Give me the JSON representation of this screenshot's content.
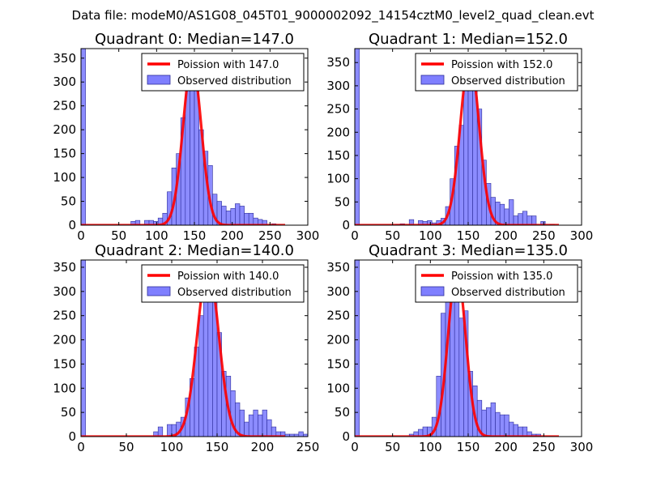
{
  "figure": {
    "suptitle": "Data file: modeM0/AS1G08_045T01_9000002092_14154cztM0_level2_quad_clean.evt"
  },
  "colors": {
    "bar_fill": "#7f7fff",
    "bar_edge": "#2d2d9a",
    "curve": "#ff0000",
    "axis": "#000000"
  },
  "chart_data": [
    {
      "type": "bar",
      "title": "Quadrant 0: Median=147.0",
      "xlim": [
        0,
        300
      ],
      "ylim": [
        0,
        370
      ],
      "xticks": [
        "0",
        "50",
        "100",
        "150",
        "200",
        "250",
        "300"
      ],
      "yticks": [
        "0",
        "50",
        "100",
        "150",
        "200",
        "250",
        "300",
        "350"
      ],
      "legend": {
        "line_label": "Poission with 147.0",
        "bar_label": "Observed distribution",
        "position": "top-right"
      },
      "bin_width": 6,
      "bins_x": [
        0,
        66,
        72,
        84,
        90,
        96,
        102,
        108,
        114,
        120,
        126,
        132,
        138,
        144,
        150,
        156,
        162,
        168,
        174,
        180,
        186,
        192,
        198,
        204,
        210,
        216,
        222,
        228,
        234,
        240,
        252
      ],
      "counts": [
        370,
        8,
        10,
        10,
        10,
        8,
        15,
        25,
        70,
        120,
        150,
        225,
        285,
        330,
        285,
        200,
        155,
        125,
        65,
        50,
        40,
        30,
        35,
        45,
        40,
        25,
        25,
        15,
        12,
        10,
        3
      ],
      "poisson_mean": 147,
      "poisson_peak": 340
    },
    {
      "type": "bar",
      "title": "Quadrant 1: Median=152.0",
      "xlim": [
        0,
        300
      ],
      "ylim": [
        0,
        380
      ],
      "xticks": [
        "0",
        "50",
        "100",
        "150",
        "200",
        "250",
        "300"
      ],
      "yticks": [
        "0",
        "50",
        "100",
        "150",
        "200",
        "250",
        "300",
        "350"
      ],
      "legend": {
        "line_label": "Poission with 152.0",
        "bar_label": "Observed distribution",
        "position": "top-right"
      },
      "bin_width": 6,
      "bins_x": [
        0,
        54,
        60,
        72,
        84,
        90,
        96,
        102,
        108,
        114,
        120,
        126,
        132,
        138,
        144,
        150,
        156,
        162,
        168,
        174,
        180,
        186,
        192,
        198,
        204,
        210,
        216,
        222,
        228,
        234,
        246,
        258
      ],
      "counts": [
        380,
        2,
        3,
        12,
        10,
        8,
        10,
        5,
        10,
        15,
        40,
        100,
        170,
        215,
        310,
        350,
        320,
        250,
        140,
        90,
        60,
        50,
        45,
        35,
        55,
        20,
        25,
        30,
        20,
        20,
        8,
        2
      ],
      "poisson_mean": 152,
      "poisson_peak": 360
    },
    {
      "type": "bar",
      "title": "Quadrant 2: Median=140.0",
      "xlim": [
        0,
        250
      ],
      "ylim": [
        0,
        365
      ],
      "xticks": [
        "0",
        "50",
        "100",
        "150",
        "200",
        "250"
      ],
      "yticks": [
        "0",
        "50",
        "100",
        "150",
        "200",
        "250",
        "300",
        "350"
      ],
      "legend": {
        "line_label": "Poission with 140.0",
        "bar_label": "Observed distribution",
        "position": "top-right"
      },
      "bin_width": 5,
      "bins_x": [
        0,
        80,
        85,
        95,
        100,
        105,
        110,
        115,
        120,
        125,
        130,
        135,
        140,
        145,
        150,
        155,
        160,
        165,
        170,
        175,
        180,
        185,
        190,
        195,
        200,
        205,
        210,
        215,
        220,
        225,
        230,
        235,
        240,
        245
      ],
      "counts": [
        365,
        10,
        20,
        25,
        25,
        30,
        40,
        80,
        120,
        185,
        250,
        350,
        340,
        310,
        215,
        135,
        125,
        95,
        70,
        55,
        30,
        45,
        55,
        45,
        55,
        35,
        20,
        10,
        10,
        5,
        5,
        5,
        10,
        5
      ],
      "poisson_mean": 140,
      "poisson_peak": 350
    },
    {
      "type": "bar",
      "title": "Quadrant 3: Median=135.0",
      "xlim": [
        0,
        300
      ],
      "ylim": [
        0,
        365
      ],
      "xticks": [
        "0",
        "50",
        "100",
        "150",
        "200",
        "250",
        "300"
      ],
      "yticks": [
        "0",
        "50",
        "100",
        "150",
        "200",
        "250",
        "300",
        "350"
      ],
      "legend": {
        "line_label": "Poission with 135.0",
        "bar_label": "Observed distribution",
        "position": "top-right"
      },
      "bin_width": 6,
      "bins_x": [
        0,
        72,
        78,
        84,
        90,
        96,
        102,
        108,
        114,
        120,
        126,
        132,
        138,
        144,
        150,
        156,
        162,
        168,
        174,
        180,
        186,
        192,
        198,
        204,
        210,
        216,
        222,
        228,
        234,
        240
      ],
      "counts": [
        365,
        5,
        10,
        15,
        20,
        20,
        40,
        125,
        255,
        300,
        335,
        350,
        245,
        260,
        135,
        105,
        75,
        55,
        60,
        70,
        50,
        45,
        45,
        30,
        25,
        20,
        20,
        10,
        5,
        5
      ],
      "poisson_mean": 135,
      "poisson_peak": 345
    }
  ]
}
